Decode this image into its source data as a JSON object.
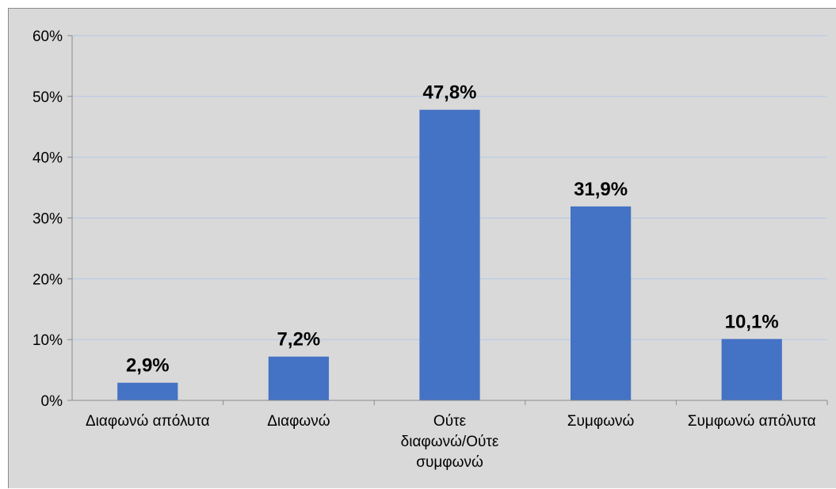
{
  "chart_data": {
    "type": "bar",
    "categories": [
      [
        "Διαφωνώ απόλυτα"
      ],
      [
        "Διαφωνώ"
      ],
      [
        "Ούτε",
        "διαφωνώ/Ούτε",
        "συμφωνώ"
      ],
      [
        "Συμφωνώ"
      ],
      [
        "Συμφωνώ απόλυτα"
      ]
    ],
    "values": [
      2.9,
      7.2,
      47.8,
      31.9,
      10.1
    ],
    "data_labels": [
      "2,9%",
      "7,2%",
      "47,8%",
      "31,9%",
      "10,1%"
    ],
    "yticks": [
      "0%",
      "10%",
      "20%",
      "30%",
      "40%",
      "50%",
      "60%"
    ],
    "ylim": [
      0,
      60
    ],
    "title": "",
    "xlabel": "",
    "ylabel": "",
    "grid": true,
    "legend": "none",
    "colors": {
      "bar": "#4472c4",
      "grid": "#b4c7e7",
      "axis": "#8c8c8c",
      "background": "#d9d9d9"
    }
  }
}
